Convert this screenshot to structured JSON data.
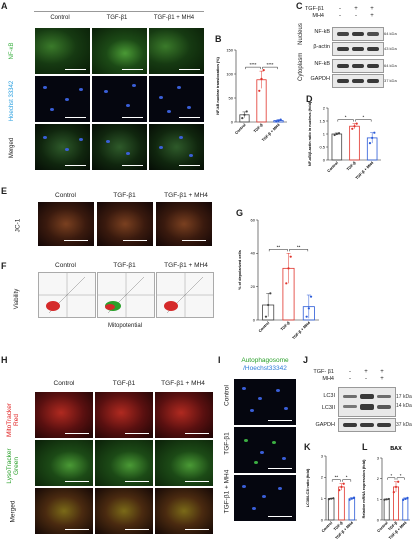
{
  "figure": {
    "panel_letters": {
      "A": "A",
      "B": "B",
      "C": "C",
      "D": "D",
      "E": "E",
      "F": "F",
      "G": "G",
      "H": "H",
      "I": "I",
      "J": "J",
      "K": "K",
      "L": "L"
    }
  },
  "panel_a": {
    "columns": [
      "Control",
      "TGF-β1",
      "TGF-β1 + MH4"
    ],
    "rows": [
      "NF-κB",
      "Hoechst 33342",
      "Merged"
    ],
    "row_colors": [
      "#3cb043",
      "#2aa0e0",
      "#222222"
    ]
  },
  "panel_c": {
    "conditions": [
      {
        "label": "TGF-β1",
        "marks": [
          "-",
          "+",
          "+"
        ]
      },
      {
        "label": "MH4",
        "marks": [
          "-",
          "-",
          "+"
        ]
      }
    ],
    "groups": [
      "Nucleus",
      "Cytoplasm"
    ],
    "bands": [
      {
        "name": "NF-kB",
        "kda": "64 kDa"
      },
      {
        "name": "β-actin",
        "kda": "43 kDa"
      },
      {
        "name": "NF-kB",
        "kda": "64 kDa"
      },
      {
        "name": "GAPDH",
        "kda": "37 kDa"
      }
    ]
  },
  "panel_e": {
    "columns": [
      "Control",
      "TGF-β1",
      "TGF-β1 + MH4"
    ],
    "row": "JC-1"
  },
  "panel_f": {
    "columns": [
      "Control",
      "TGF-β1",
      "TGF-β1 + MH4"
    ],
    "ylabel": "Viability",
    "xlabel": "Mitopotential"
  },
  "panel_h": {
    "columns": [
      "Control",
      "TGF-β1",
      "TGF-β1 + MH4"
    ],
    "rows": [
      "MitoTracker Red",
      "LysoTracker Green",
      "Merged"
    ],
    "row_colors": [
      "#e02020",
      "#2aa02a",
      "#222222"
    ]
  },
  "panel_i": {
    "title_line1": "Autophagosome",
    "title_line2": "/Hoechst33342",
    "title_colors": [
      "#2aa02a",
      "#2a7ad8"
    ],
    "rows": [
      "Control",
      "TGF-β1",
      "TGF-β1 + MH4"
    ]
  },
  "panel_j": {
    "conditions": [
      {
        "label": "TGF- β1",
        "marks": [
          "-",
          "+",
          "+"
        ]
      },
      {
        "label": "MH4",
        "marks": [
          "-",
          "-",
          "+"
        ]
      }
    ],
    "bands": [
      {
        "name": "LC3I",
        "kda": "17 kDa"
      },
      {
        "name": "LC3II",
        "kda": "14 kDa"
      },
      {
        "name": "GAPDH",
        "kda": "37 kDa"
      }
    ]
  },
  "chart_data": [
    {
      "id": "B",
      "type": "bar",
      "ylabel": "NF-kB nuclear translocation (%)",
      "categories": [
        "Control",
        "TGF-β",
        "TGF-β + MH4"
      ],
      "values": [
        15,
        88,
        3
      ],
      "errors": [
        6,
        18,
        2
      ],
      "points": [
        [
          8,
          15,
          22
        ],
        [
          65,
          90,
          108
        ],
        [
          1,
          3,
          5
        ]
      ],
      "colors": [
        "#444444",
        "#e0332b",
        "#2a5ad8"
      ],
      "ylim": [
        0,
        150
      ],
      "yticks": [
        0,
        50,
        100,
        150
      ],
      "sig": [
        "****",
        "****"
      ]
    },
    {
      "id": "D",
      "type": "bar",
      "ylabel": "NF-κB/β-actin ratio in nucleus (fold)",
      "categories": [
        "Control",
        "TGF-β",
        "TGF-β + MH4"
      ],
      "values": [
        1.0,
        1.3,
        0.85
      ],
      "errors": [
        0.04,
        0.1,
        0.2
      ],
      "points": [
        [
          0.96,
          1.0,
          1.03
        ],
        [
          1.2,
          1.3,
          1.4
        ],
        [
          0.65,
          0.85,
          1.05
        ]
      ],
      "colors": [
        "#444444",
        "#e0332b",
        "#2a5ad8"
      ],
      "ylim": [
        0,
        2.0
      ],
      "yticks": [
        0,
        0.5,
        1.0,
        1.5,
        2.0
      ],
      "sig": [
        "*",
        "*"
      ]
    },
    {
      "id": "G",
      "type": "bar",
      "ylabel": "% of depolarized cells",
      "categories": [
        "Control",
        "TGF-β",
        "TGF-β + MH4"
      ],
      "values": [
        9,
        31,
        8
      ],
      "errors": [
        7,
        9,
        7
      ],
      "points": [
        [
          2,
          9,
          16
        ],
        [
          22,
          31,
          38
        ],
        [
          2,
          7,
          14
        ]
      ],
      "colors": [
        "#444444",
        "#e0332b",
        "#2a5ad8"
      ],
      "ylim": [
        0,
        60
      ],
      "yticks": [
        0,
        20,
        40,
        60
      ],
      "sig": [
        "**",
        "**"
      ]
    },
    {
      "id": "K",
      "type": "bar",
      "ylabel": "LC3II/LC3I ratio (fold)",
      "categories": [
        "Control",
        "TGF-β",
        "TGF-β + MH4"
      ],
      "values": [
        1.0,
        1.55,
        1.0
      ],
      "errors": [
        0.02,
        0.15,
        0.05
      ],
      "points": [
        [
          0.98,
          1.0,
          1.02
        ],
        [
          1.4,
          1.55,
          1.7
        ],
        [
          0.95,
          1.0,
          1.05
        ]
      ],
      "colors": [
        "#444444",
        "#e0332b",
        "#2a5ad8"
      ],
      "ylim": [
        0,
        3
      ],
      "yticks": [
        0,
        1,
        2,
        3
      ],
      "sig": [
        "**",
        "*"
      ]
    },
    {
      "id": "L",
      "type": "bar",
      "title": "BAX",
      "ylabel": "Relative mRNA expression (fold)",
      "categories": [
        "Control",
        "TGF-β",
        "TGF-β + MH4"
      ],
      "values": [
        1.0,
        1.6,
        1.02
      ],
      "errors": [
        0.02,
        0.25,
        0.05
      ],
      "points": [
        [
          0.98,
          1.0,
          1.02
        ],
        [
          1.35,
          1.6,
          1.85
        ],
        [
          0.97,
          1.02,
          1.07
        ]
      ],
      "colors": [
        "#444444",
        "#e0332b",
        "#2a5ad8"
      ],
      "ylim": [
        0,
        3
      ],
      "yticks": [
        0,
        1,
        2,
        3
      ],
      "sig": [
        "*",
        "*"
      ]
    }
  ]
}
